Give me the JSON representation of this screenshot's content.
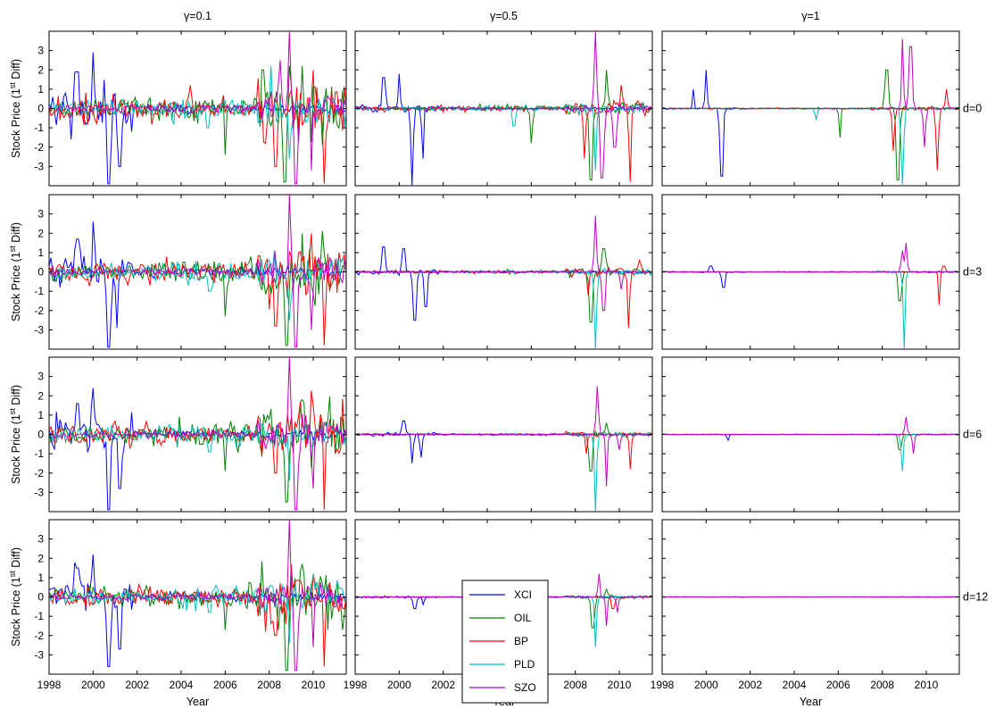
{
  "chart_data": {
    "type": "line",
    "columns": [
      {
        "gamma_label": "γ=0.1",
        "gamma": 0.1
      },
      {
        "gamma_label": "γ=0.5",
        "gamma": 0.5
      },
      {
        "gamma_label": "γ=1",
        "gamma": 1
      }
    ],
    "rows": [
      {
        "d_label": "d=0",
        "d": 0
      },
      {
        "d_label": "d=3",
        "d": 3
      },
      {
        "d_label": "d=6",
        "d": 6
      },
      {
        "d_label": "d=12",
        "d": 12
      }
    ],
    "xlabel": "Year",
    "ylabel": "Stock Price (1st Diff)",
    "ylabel_parts": {
      "pre": "Stock Price (1",
      "sup": "st",
      "post": " Diff)"
    },
    "xlim": [
      1998,
      2011.5
    ],
    "ylim": [
      -4,
      4
    ],
    "x_ticks": [
      "1998",
      "2000",
      "2002",
      "2004",
      "2006",
      "2008",
      "2010"
    ],
    "y_ticks": [
      "-3",
      "-2",
      "-1",
      "0",
      "1",
      "2",
      "3"
    ],
    "legend": {
      "position": "inside-bottom-left of bottom-middle panel"
    },
    "series": [
      {
        "name": "XCI",
        "color": "#0000ff"
      },
      {
        "name": "OIL",
        "color": "#008000"
      },
      {
        "name": "BP",
        "color": "#ff0000"
      },
      {
        "name": "PLD",
        "color": "#00bfbf"
      },
      {
        "name": "SZO",
        "color": "#bf00bf"
      }
    ],
    "panels": [
      {
        "row": 0,
        "col": 0,
        "events": [
          {
            "series": "XCI",
            "x": 2000.0,
            "y": 2.9
          },
          {
            "series": "XCI",
            "x": 2000.7,
            "y": -3.9
          },
          {
            "series": "XCI",
            "x": 2001.2,
            "y": -3.0
          },
          {
            "series": "XCI",
            "x": 1999.3,
            "y": 1.9
          },
          {
            "series": "XCI",
            "x": 1999.0,
            "y": -1.6
          },
          {
            "series": "OIL",
            "x": 2006.0,
            "y": -2.4
          },
          {
            "series": "OIL",
            "x": 2008.7,
            "y": -3.8
          },
          {
            "series": "OIL",
            "x": 2009.5,
            "y": 2.2
          },
          {
            "series": "OIL",
            "x": 2007.7,
            "y": 2.0
          },
          {
            "series": "BP",
            "x": 2008.3,
            "y": -3.0
          },
          {
            "series": "BP",
            "x": 2010.5,
            "y": -3.9
          },
          {
            "series": "BP",
            "x": 2010.0,
            "y": 2.0
          },
          {
            "series": "BP",
            "x": 2004.4,
            "y": 1.2
          },
          {
            "series": "PLD",
            "x": 2008.9,
            "y": -2.6
          },
          {
            "series": "PLD",
            "x": 2005.2,
            "y": -1.0
          },
          {
            "series": "PLD",
            "x": 2008.1,
            "y": 2.2
          },
          {
            "series": "SZO",
            "x": 2008.9,
            "y": 4.0
          },
          {
            "series": "SZO",
            "x": 2009.2,
            "y": -3.9
          },
          {
            "series": "SZO",
            "x": 2009.9,
            "y": -3.2
          },
          {
            "series": "SZO",
            "x": 2008.5,
            "y": 2.5
          }
        ]
      },
      {
        "row": 0,
        "col": 1,
        "events": [
          {
            "series": "XCI",
            "x": 2000.0,
            "y": 1.8
          },
          {
            "series": "XCI",
            "x": 2000.6,
            "y": -4.0
          },
          {
            "series": "XCI",
            "x": 2001.1,
            "y": -2.6
          },
          {
            "series": "XCI",
            "x": 1999.3,
            "y": 1.6
          },
          {
            "series": "OIL",
            "x": 2006.0,
            "y": -1.8
          },
          {
            "series": "OIL",
            "x": 2008.7,
            "y": -3.7
          },
          {
            "series": "OIL",
            "x": 2009.4,
            "y": 2.0
          },
          {
            "series": "BP",
            "x": 2008.4,
            "y": -2.6
          },
          {
            "series": "BP",
            "x": 2010.5,
            "y": -3.8
          },
          {
            "series": "BP",
            "x": 2010.1,
            "y": 1.2
          },
          {
            "series": "PLD",
            "x": 2008.9,
            "y": -3.2
          },
          {
            "series": "PLD",
            "x": 2005.2,
            "y": -0.9
          },
          {
            "series": "SZO",
            "x": 2008.9,
            "y": 4.0
          },
          {
            "series": "SZO",
            "x": 2009.2,
            "y": -3.6
          },
          {
            "series": "SZO",
            "x": 2009.8,
            "y": -2.0
          }
        ]
      },
      {
        "row": 0,
        "col": 2,
        "events": [
          {
            "series": "XCI",
            "x": 2000.0,
            "y": 2.0
          },
          {
            "series": "XCI",
            "x": 2000.7,
            "y": -3.5
          },
          {
            "series": "XCI",
            "x": 1999.4,
            "y": 1.0
          },
          {
            "series": "OIL",
            "x": 2006.1,
            "y": -1.5
          },
          {
            "series": "OIL",
            "x": 2008.7,
            "y": -3.7
          },
          {
            "series": "OIL",
            "x": 2008.2,
            "y": 2.0
          },
          {
            "series": "BP",
            "x": 2008.5,
            "y": -2.2
          },
          {
            "series": "BP",
            "x": 2010.5,
            "y": -3.2
          },
          {
            "series": "BP",
            "x": 2010.9,
            "y": 1.0
          },
          {
            "series": "PLD",
            "x": 2008.9,
            "y": -4.0
          },
          {
            "series": "PLD",
            "x": 2005.0,
            "y": -0.6
          },
          {
            "series": "SZO",
            "x": 2008.9,
            "y": 3.6
          },
          {
            "series": "SZO",
            "x": 2009.3,
            "y": 3.2
          },
          {
            "series": "SZO",
            "x": 2009.9,
            "y": -2.0
          }
        ]
      },
      {
        "row": 1,
        "col": 0,
        "events": [
          {
            "series": "XCI",
            "x": 2000.0,
            "y": 2.6
          },
          {
            "series": "XCI",
            "x": 2000.7,
            "y": -3.9
          },
          {
            "series": "XCI",
            "x": 2001.1,
            "y": -2.9
          },
          {
            "series": "XCI",
            "x": 1999.3,
            "y": 1.7
          },
          {
            "series": "OIL",
            "x": 2006.0,
            "y": -2.3
          },
          {
            "series": "OIL",
            "x": 2008.8,
            "y": -3.8
          },
          {
            "series": "OIL",
            "x": 2009.5,
            "y": 2.0
          },
          {
            "series": "BP",
            "x": 2008.3,
            "y": -2.8
          },
          {
            "series": "BP",
            "x": 2010.5,
            "y": -3.8
          },
          {
            "series": "BP",
            "x": 2009.9,
            "y": 2.0
          },
          {
            "series": "PLD",
            "x": 2008.9,
            "y": -2.5
          },
          {
            "series": "PLD",
            "x": 2005.3,
            "y": -1.0
          },
          {
            "series": "SZO",
            "x": 2008.9,
            "y": 4.0
          },
          {
            "series": "SZO",
            "x": 2009.2,
            "y": -3.9
          },
          {
            "series": "SZO",
            "x": 2009.9,
            "y": -3.0
          }
        ]
      },
      {
        "row": 1,
        "col": 1,
        "events": [
          {
            "series": "XCI",
            "x": 1999.3,
            "y": 1.3
          },
          {
            "series": "XCI",
            "x": 2000.2,
            "y": 1.2
          },
          {
            "series": "XCI",
            "x": 2000.7,
            "y": -2.5
          },
          {
            "series": "XCI",
            "x": 2001.2,
            "y": -1.8
          },
          {
            "series": "OIL",
            "x": 2008.7,
            "y": -2.6
          },
          {
            "series": "OIL",
            "x": 2009.3,
            "y": 1.2
          },
          {
            "series": "BP",
            "x": 2008.6,
            "y": -1.2
          },
          {
            "series": "BP",
            "x": 2010.4,
            "y": -2.9
          },
          {
            "series": "BP",
            "x": 2010.9,
            "y": 0.6
          },
          {
            "series": "PLD",
            "x": 2008.9,
            "y": -4.0
          },
          {
            "series": "SZO",
            "x": 2008.9,
            "y": 2.9
          },
          {
            "series": "SZO",
            "x": 2009.3,
            "y": -2.0
          },
          {
            "series": "SZO",
            "x": 2010.1,
            "y": -0.9
          }
        ]
      },
      {
        "row": 1,
        "col": 2,
        "events": [
          {
            "series": "XCI",
            "x": 2000.2,
            "y": 0.3
          },
          {
            "series": "XCI",
            "x": 2000.8,
            "y": -0.8
          },
          {
            "series": "OIL",
            "x": 2008.8,
            "y": -1.5
          },
          {
            "series": "BP",
            "x": 2010.6,
            "y": -1.7
          },
          {
            "series": "BP",
            "x": 2010.8,
            "y": 0.3
          },
          {
            "series": "PLD",
            "x": 2009.0,
            "y": -4.0
          },
          {
            "series": "SZO",
            "x": 2009.1,
            "y": 1.5
          },
          {
            "series": "SZO",
            "x": 2008.9,
            "y": 1.1
          }
        ]
      },
      {
        "row": 2,
        "col": 0,
        "events": [
          {
            "series": "XCI",
            "x": 2000.0,
            "y": 2.4
          },
          {
            "series": "XCI",
            "x": 2000.7,
            "y": -3.9
          },
          {
            "series": "XCI",
            "x": 2001.2,
            "y": -2.8
          },
          {
            "series": "XCI",
            "x": 1999.3,
            "y": 1.6
          },
          {
            "series": "OIL",
            "x": 2006.0,
            "y": -1.9
          },
          {
            "series": "OIL",
            "x": 2008.8,
            "y": -3.5
          },
          {
            "series": "OIL",
            "x": 2009.5,
            "y": 1.8
          },
          {
            "series": "BP",
            "x": 2008.3,
            "y": -2.0
          },
          {
            "series": "BP",
            "x": 2010.5,
            "y": -3.9
          },
          {
            "series": "BP",
            "x": 2010.0,
            "y": 1.5
          },
          {
            "series": "PLD",
            "x": 2008.9,
            "y": -2.4
          },
          {
            "series": "PLD",
            "x": 2005.3,
            "y": -0.9
          },
          {
            "series": "SZO",
            "x": 2008.9,
            "y": 4.0
          },
          {
            "series": "SZO",
            "x": 2009.2,
            "y": -3.9
          },
          {
            "series": "SZO",
            "x": 2010.0,
            "y": -2.8
          }
        ]
      },
      {
        "row": 2,
        "col": 1,
        "events": [
          {
            "series": "XCI",
            "x": 2000.2,
            "y": 0.7
          },
          {
            "series": "XCI",
            "x": 2000.6,
            "y": -1.5
          },
          {
            "series": "XCI",
            "x": 2001.0,
            "y": -1.2
          },
          {
            "series": "OIL",
            "x": 2008.7,
            "y": -1.9
          },
          {
            "series": "OIL",
            "x": 2009.4,
            "y": 0.6
          },
          {
            "series": "BP",
            "x": 2008.5,
            "y": -1.0
          },
          {
            "series": "BP",
            "x": 2010.5,
            "y": -1.8
          },
          {
            "series": "PLD",
            "x": 2008.9,
            "y": -4.0
          },
          {
            "series": "SZO",
            "x": 2009.0,
            "y": 2.5
          },
          {
            "series": "SZO",
            "x": 2009.4,
            "y": -2.7
          },
          {
            "series": "SZO",
            "x": 2010.0,
            "y": -0.8
          }
        ]
      },
      {
        "row": 2,
        "col": 2,
        "events": [
          {
            "series": "XCI",
            "x": 2001.0,
            "y": -0.3
          },
          {
            "series": "OIL",
            "x": 2008.8,
            "y": -0.8
          },
          {
            "series": "PLD",
            "x": 2008.9,
            "y": -1.9
          },
          {
            "series": "SZO",
            "x": 2009.1,
            "y": 0.9
          },
          {
            "series": "SZO",
            "x": 2009.4,
            "y": -1.0
          }
        ]
      },
      {
        "row": 3,
        "col": 0,
        "events": [
          {
            "series": "XCI",
            "x": 2000.0,
            "y": 2.2
          },
          {
            "series": "XCI",
            "x": 2000.7,
            "y": -3.6
          },
          {
            "series": "XCI",
            "x": 2001.2,
            "y": -2.7
          },
          {
            "series": "XCI",
            "x": 1999.3,
            "y": 1.5
          },
          {
            "series": "OIL",
            "x": 2006.0,
            "y": -1.7
          },
          {
            "series": "OIL",
            "x": 2008.8,
            "y": -3.8
          },
          {
            "series": "OIL",
            "x": 2009.5,
            "y": 1.7
          },
          {
            "series": "BP",
            "x": 2008.3,
            "y": -2.0
          },
          {
            "series": "BP",
            "x": 2010.5,
            "y": -3.6
          },
          {
            "series": "BP",
            "x": 2010.0,
            "y": 1.2
          },
          {
            "series": "PLD",
            "x": 2008.9,
            "y": -2.4
          },
          {
            "series": "PLD",
            "x": 2005.3,
            "y": -0.8
          },
          {
            "series": "SZO",
            "x": 2008.9,
            "y": 4.0
          },
          {
            "series": "SZO",
            "x": 2009.2,
            "y": -3.8
          },
          {
            "series": "SZO",
            "x": 2010.0,
            "y": -2.6
          }
        ]
      },
      {
        "row": 3,
        "col": 1,
        "events": [
          {
            "series": "XCI",
            "x": 2000.7,
            "y": -0.6
          },
          {
            "series": "XCI",
            "x": 2001.1,
            "y": -0.4
          },
          {
            "series": "OIL",
            "x": 2008.8,
            "y": -1.6
          },
          {
            "series": "OIL",
            "x": 2009.4,
            "y": 0.4
          },
          {
            "series": "BP",
            "x": 2009.7,
            "y": -0.6
          },
          {
            "series": "PLD",
            "x": 2008.9,
            "y": -2.6
          },
          {
            "series": "SZO",
            "x": 2009.1,
            "y": 1.2
          },
          {
            "series": "SZO",
            "x": 2009.4,
            "y": -1.5
          },
          {
            "series": "SZO",
            "x": 2009.9,
            "y": -0.8
          }
        ]
      },
      {
        "row": 3,
        "col": 2,
        "events": []
      }
    ]
  }
}
